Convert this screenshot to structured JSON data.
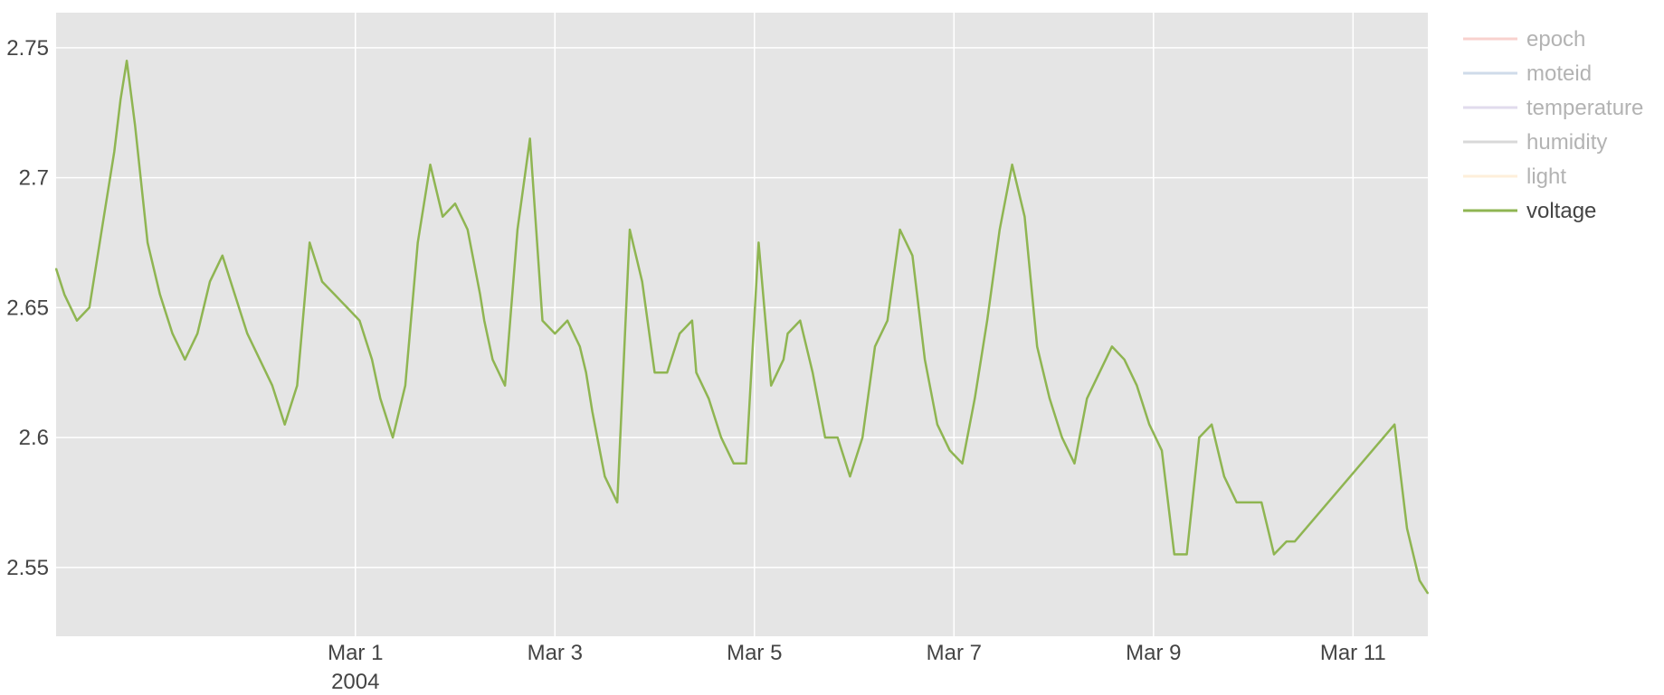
{
  "chart_data": {
    "type": "line",
    "title": "",
    "xlabel": "",
    "ylabel": "",
    "x_range": [
      "2004-02-27T00:00",
      "2004-03-11T18:00"
    ],
    "ylim": [
      2.5235,
      2.7635
    ],
    "y_ticks": [
      2.55,
      2.6,
      2.65,
      2.7,
      2.75
    ],
    "y_tick_labels": [
      "2.55",
      "2.6",
      "2.65",
      "2.7",
      "2.75"
    ],
    "x_ticks": [
      "2004-03-01",
      "2004-03-03",
      "2004-03-05",
      "2004-03-07",
      "2004-03-09",
      "2004-03-11"
    ],
    "x_tick_labels": [
      "Mar 1",
      "Mar 3",
      "Mar 5",
      "Mar 7",
      "Mar 9",
      "Mar 11"
    ],
    "x_year_label": "2004",
    "grid": true,
    "plot_background": "#e5e5e5",
    "legend_position": "top-right",
    "legend": [
      {
        "name": "epoch",
        "color": "#f2a59d",
        "visible": false
      },
      {
        "name": "moteid",
        "color": "#9fb8d6",
        "visible": false
      },
      {
        "name": "temperature",
        "color": "#c4b8dc",
        "visible": false
      },
      {
        "name": "humidity",
        "color": "#b2b2b2",
        "visible": false
      },
      {
        "name": "light",
        "color": "#fde0b5",
        "visible": false
      },
      {
        "name": "voltage",
        "color": "#8fb552",
        "visible": true
      }
    ],
    "series": [
      {
        "name": "voltage",
        "color": "#8fb552",
        "x": [
          "2004-02-27T00:00",
          "2004-02-27T02:00",
          "2004-02-27T05:00",
          "2004-02-27T08:00",
          "2004-02-27T11:00",
          "2004-02-27T14:00",
          "2004-02-27T15:30",
          "2004-02-27T17:00",
          "2004-02-27T19:00",
          "2004-02-27T22:00",
          "2004-02-28T01:00",
          "2004-02-28T04:00",
          "2004-02-28T07:00",
          "2004-02-28T10:00",
          "2004-02-28T13:00",
          "2004-02-28T16:00",
          "2004-02-28T19:00",
          "2004-02-28T22:00",
          "2004-02-29T01:00",
          "2004-02-29T04:00",
          "2004-02-29T07:00",
          "2004-02-29T10:00",
          "2004-02-29T13:00",
          "2004-02-29T16:00",
          "2004-02-29T19:00",
          "2004-02-29T22:00",
          "2004-03-01T01:00",
          "2004-03-01T04:00",
          "2004-03-01T06:00",
          "2004-03-01T09:00",
          "2004-03-01T12:00",
          "2004-03-01T15:00",
          "2004-03-01T18:00",
          "2004-03-01T21:00",
          "2004-03-02T00:00",
          "2004-03-02T03:00",
          "2004-03-02T06:00",
          "2004-03-02T07:00",
          "2004-03-02T09:00",
          "2004-03-02T12:00",
          "2004-03-02T15:00",
          "2004-03-02T18:00",
          "2004-03-02T21:00",
          "2004-03-03T00:00",
          "2004-03-03T03:00",
          "2004-03-03T06:00",
          "2004-03-03T07:30",
          "2004-03-03T09:00",
          "2004-03-03T12:00",
          "2004-03-03T15:00",
          "2004-03-03T18:00",
          "2004-03-03T21:00",
          "2004-03-04T00:00",
          "2004-03-04T03:00",
          "2004-03-04T06:00",
          "2004-03-04T09:00",
          "2004-03-04T10:00",
          "2004-03-04T13:00",
          "2004-03-04T16:00",
          "2004-03-04T19:00",
          "2004-03-04T22:00",
          "2004-03-05T01:00",
          "2004-03-05T04:00",
          "2004-03-05T07:00",
          "2004-03-05T08:00",
          "2004-03-05T11:00",
          "2004-03-05T14:00",
          "2004-03-05T17:00",
          "2004-03-05T20:00",
          "2004-03-05T23:00",
          "2004-03-06T02:00",
          "2004-03-06T05:00",
          "2004-03-06T08:00",
          "2004-03-06T11:00",
          "2004-03-06T14:00",
          "2004-03-06T17:00",
          "2004-03-06T20:00",
          "2004-03-06T23:00",
          "2004-03-07T02:00",
          "2004-03-07T05:00",
          "2004-03-07T08:00",
          "2004-03-07T11:00",
          "2004-03-07T14:00",
          "2004-03-07T17:00",
          "2004-03-07T20:00",
          "2004-03-07T23:00",
          "2004-03-08T02:00",
          "2004-03-08T05:00",
          "2004-03-08T08:00",
          "2004-03-08T11:00",
          "2004-03-08T14:00",
          "2004-03-08T17:00",
          "2004-03-08T20:00",
          "2004-03-08T23:00",
          "2004-03-09T02:00",
          "2004-03-09T05:00",
          "2004-03-09T08:00",
          "2004-03-09T11:00",
          "2004-03-09T14:00",
          "2004-03-09T17:00",
          "2004-03-09T20:00",
          "2004-03-09T23:00",
          "2004-03-10T02:00",
          "2004-03-10T05:00",
          "2004-03-10T08:00",
          "2004-03-10T10:00",
          "2004-03-11T10:00",
          "2004-03-11T13:00",
          "2004-03-11T16:00",
          "2004-03-11T18:00"
        ],
        "y": [
          2.665,
          2.655,
          2.645,
          2.65,
          2.68,
          2.71,
          2.73,
          2.745,
          2.72,
          2.675,
          2.655,
          2.64,
          2.63,
          2.64,
          2.66,
          2.67,
          2.655,
          2.64,
          2.63,
          2.62,
          2.605,
          2.62,
          2.675,
          2.66,
          2.655,
          2.65,
          2.645,
          2.63,
          2.615,
          2.6,
          2.62,
          2.675,
          2.705,
          2.685,
          2.69,
          2.68,
          2.655,
          2.645,
          2.63,
          2.62,
          2.68,
          2.715,
          2.645,
          2.64,
          2.645,
          2.635,
          2.625,
          2.61,
          2.585,
          2.575,
          2.68,
          2.66,
          2.625,
          2.625,
          2.64,
          2.645,
          2.625,
          2.615,
          2.6,
          2.59,
          2.59,
          2.675,
          2.62,
          2.63,
          2.64,
          2.645,
          2.625,
          2.6,
          2.6,
          2.585,
          2.6,
          2.635,
          2.645,
          2.68,
          2.67,
          2.63,
          2.605,
          2.595,
          2.59,
          2.615,
          2.645,
          2.68,
          2.705,
          2.685,
          2.635,
          2.615,
          2.6,
          2.59,
          2.615,
          2.625,
          2.635,
          2.63,
          2.62,
          2.605,
          2.595,
          2.555,
          2.555,
          2.6,
          2.605,
          2.585,
          2.575,
          2.575,
          2.575,
          2.555,
          2.56,
          2.56,
          2.605,
          2.565,
          2.545,
          2.54
        ]
      }
    ]
  }
}
